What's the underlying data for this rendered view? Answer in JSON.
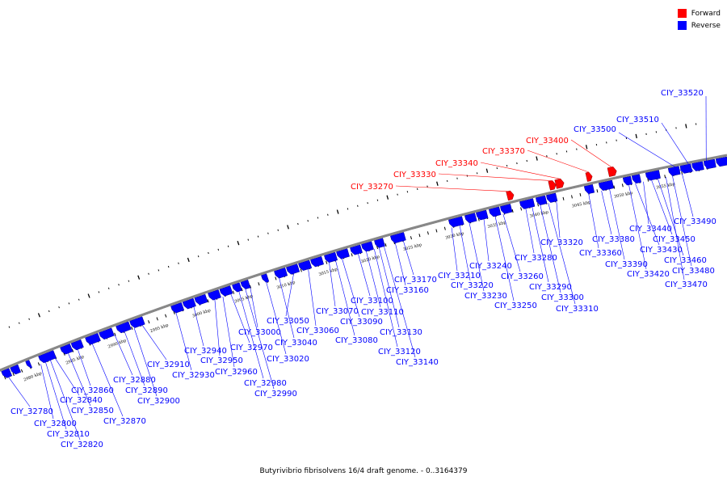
{
  "caption": "Butyrivibrio fibrisolvens 16/4 draft genome. - 0..3164379",
  "legend": {
    "forward_label": "Forward",
    "forward_color": "#ff0000",
    "reverse_label": "Reverse",
    "reverse_color": "#0000ff"
  },
  "colors": {
    "backbone": "#888888",
    "forward": "#ff0000",
    "reverse": "#0000ff"
  },
  "scale_labels": [
    "2980 kbp",
    "2985 kbp",
    "2990 kbp",
    "2995 kbp",
    "3000 kbp",
    "3005 kbp",
    "3010 kbp",
    "3015 kbp",
    "3020 kbp",
    "3025 kbp",
    "3030 kbp",
    "3035 kbp",
    "3040 kbp",
    "3045 kbp",
    "3050 kbp",
    "3055 kbp"
  ],
  "genes": [
    {
      "label": "CIY_32780",
      "strand": "reverse"
    },
    {
      "label": "CIY_32800",
      "strand": "reverse"
    },
    {
      "label": "CIY_32810",
      "strand": "reverse"
    },
    {
      "label": "CIY_32820",
      "strand": "reverse"
    },
    {
      "label": "CIY_32840",
      "strand": "reverse"
    },
    {
      "label": "CIY_32850",
      "strand": "reverse"
    },
    {
      "label": "CIY_32860",
      "strand": "reverse"
    },
    {
      "label": "CIY_32870",
      "strand": "reverse"
    },
    {
      "label": "CIY_32880",
      "strand": "reverse"
    },
    {
      "label": "CIY_32890",
      "strand": "reverse"
    },
    {
      "label": "CIY_32900",
      "strand": "reverse"
    },
    {
      "label": "CIY_32910",
      "strand": "reverse"
    },
    {
      "label": "CIY_32930",
      "strand": "reverse"
    },
    {
      "label": "CIY_32940",
      "strand": "reverse"
    },
    {
      "label": "CIY_32950",
      "strand": "reverse"
    },
    {
      "label": "CIY_32960",
      "strand": "reverse"
    },
    {
      "label": "CIY_32970",
      "strand": "reverse"
    },
    {
      "label": "CIY_32980",
      "strand": "reverse"
    },
    {
      "label": "CIY_32990",
      "strand": "reverse"
    },
    {
      "label": "CIY_33000",
      "strand": "reverse"
    },
    {
      "label": "CIY_33020",
      "strand": "reverse"
    },
    {
      "label": "CIY_33040",
      "strand": "reverse"
    },
    {
      "label": "CIY_33050",
      "strand": "reverse"
    },
    {
      "label": "CIY_33060",
      "strand": "reverse"
    },
    {
      "label": "CIY_33070",
      "strand": "reverse"
    },
    {
      "label": "CIY_33080",
      "strand": "reverse"
    },
    {
      "label": "CIY_33090",
      "strand": "reverse"
    },
    {
      "label": "CIY_33100",
      "strand": "reverse"
    },
    {
      "label": "CIY_33110",
      "strand": "reverse"
    },
    {
      "label": "CIY_33120",
      "strand": "reverse"
    },
    {
      "label": "CIY_33130",
      "strand": "reverse"
    },
    {
      "label": "CIY_33140",
      "strand": "reverse"
    },
    {
      "label": "CIY_33160",
      "strand": "reverse"
    },
    {
      "label": "CIY_33170",
      "strand": "reverse"
    },
    {
      "label": "CIY_33210",
      "strand": "reverse"
    },
    {
      "label": "CIY_33220",
      "strand": "reverse"
    },
    {
      "label": "CIY_33230",
      "strand": "reverse"
    },
    {
      "label": "CIY_33240",
      "strand": "reverse"
    },
    {
      "label": "CIY_33250",
      "strand": "reverse"
    },
    {
      "label": "CIY_33260",
      "strand": "reverse"
    },
    {
      "label": "CIY_33270",
      "strand": "forward"
    },
    {
      "label": "CIY_33280",
      "strand": "reverse"
    },
    {
      "label": "CIY_33290",
      "strand": "reverse"
    },
    {
      "label": "CIY_33300",
      "strand": "reverse"
    },
    {
      "label": "CIY_33310",
      "strand": "reverse"
    },
    {
      "label": "CIY_33320",
      "strand": "reverse"
    },
    {
      "label": "CIY_33330",
      "strand": "forward"
    },
    {
      "label": "CIY_33340",
      "strand": "forward"
    },
    {
      "label": "CIY_33360",
      "strand": "reverse"
    },
    {
      "label": "CIY_33370",
      "strand": "forward"
    },
    {
      "label": "CIY_33380",
      "strand": "reverse"
    },
    {
      "label": "CIY_33390",
      "strand": "reverse"
    },
    {
      "label": "CIY_33400",
      "strand": "forward"
    },
    {
      "label": "CIY_33420",
      "strand": "reverse"
    },
    {
      "label": "CIY_33430",
      "strand": "reverse"
    },
    {
      "label": "CIY_33440",
      "strand": "reverse"
    },
    {
      "label": "CIY_33450",
      "strand": "reverse"
    },
    {
      "label": "CIY_33460",
      "strand": "reverse"
    },
    {
      "label": "CIY_33470",
      "strand": "reverse"
    },
    {
      "label": "CIY_33480",
      "strand": "reverse"
    },
    {
      "label": "CIY_33490",
      "strand": "reverse"
    },
    {
      "label": "CIY_33500",
      "strand": "reverse"
    },
    {
      "label": "CIY_33510",
      "strand": "reverse"
    },
    {
      "label": "CIY_33520",
      "strand": "reverse"
    }
  ]
}
